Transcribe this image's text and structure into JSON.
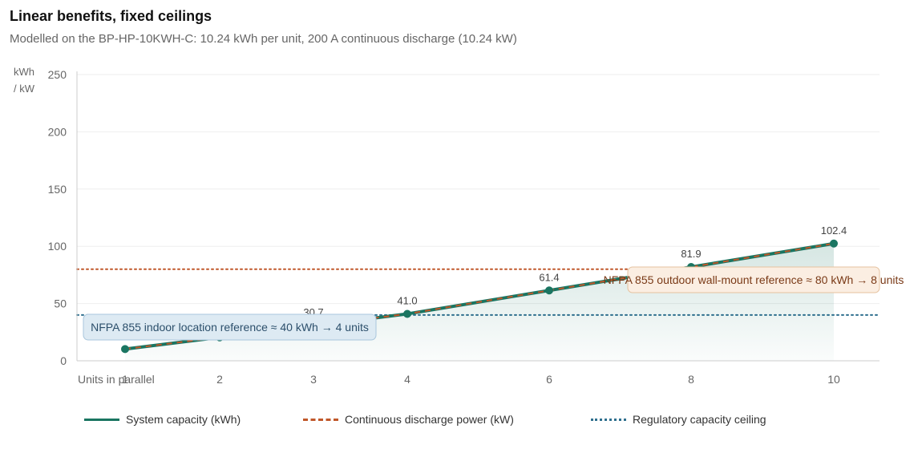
{
  "header": {
    "title": "Linear benefits, fixed ceilings",
    "subtitle": "Modelled on the BP-HP-10KWH-C: 10.24 kWh per unit, 200 A continuous discharge (10.24 kW)"
  },
  "colors": {
    "capacity": "#1a7561",
    "power": "#c0572a",
    "regulatory": "#2e6f8e",
    "grid": "#eeeeee",
    "axis": "#cccccc"
  },
  "chart_data": {
    "type": "line",
    "xlabel": "Units in parallel",
    "ylabel_lines": [
      "kWh",
      "/ kW"
    ],
    "ylim": [
      0,
      250
    ],
    "yticks": [
      0,
      50,
      100,
      150,
      200,
      250
    ],
    "x_tick_labels": [
      "1",
      "2",
      "3",
      "4",
      "6",
      "8",
      "10"
    ],
    "x": [
      1,
      2,
      3,
      4,
      6,
      8,
      10
    ],
    "point_labels": [
      "",
      "",
      "30.7",
      "41.0",
      "61.4",
      "81.9",
      "102.4"
    ],
    "series": [
      {
        "name": "System capacity (kWh)",
        "values": [
          10.24,
          20.48,
          30.72,
          40.96,
          61.44,
          81.92,
          102.4
        ],
        "style": "solid"
      },
      {
        "name": "Continuous discharge power (kW)",
        "values": [
          10.24,
          20.48,
          30.72,
          40.96,
          61.44,
          81.92,
          102.4
        ],
        "style": "dashed"
      }
    ],
    "reference_lines": [
      {
        "name": "Regulatory capacity ceiling",
        "value": 40,
        "color": "#2e6f8e",
        "label": "NFPA 855 indoor location reference ≈ 40 kWh → 4 units"
      },
      {
        "name": "",
        "value": 80,
        "color": "#c0572a",
        "label": "NFPA 855 outdoor wall-mount reference ≈ 80 kWh → 8 units"
      }
    ],
    "legend": [
      "System capacity (kWh)",
      "Continuous discharge power (kW)",
      "Regulatory capacity ceiling"
    ],
    "legend_position": "bottom",
    "grid": true
  }
}
